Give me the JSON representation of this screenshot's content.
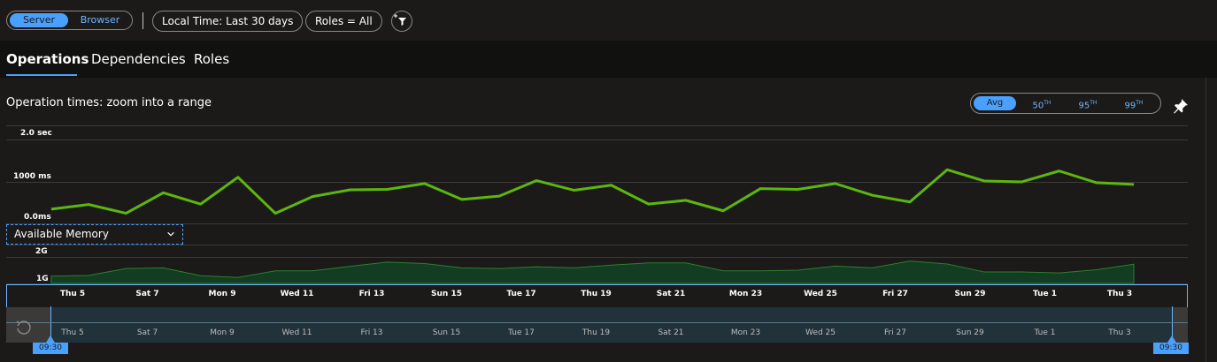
{
  "toolbar": {
    "source_toggle": {
      "server": "Server",
      "browser": "Browser"
    },
    "time_filter": "Local Time: Last 30 days",
    "roles_filter": "Roles = All",
    "add_filter_icon": "add-filter-icon"
  },
  "tabs": [
    "Operations",
    "Dependencies",
    "Roles"
  ],
  "panel": {
    "title": "Operation times: zoom into a range",
    "percentiles": {
      "avg": "Avg",
      "p50": "50",
      "p95": "95",
      "p99": "99",
      "suffix": "TH"
    },
    "pin_icon": "pin-icon",
    "metric_dropdown": "Available Memory"
  },
  "chart_data": [
    {
      "type": "line",
      "title": "",
      "ylabels": [
        "2.0 sec",
        "1000 ms",
        "0.0ms"
      ],
      "ylim": [
        0,
        2000
      ],
      "series": [
        {
          "values": [
            340,
            450,
            240,
            730,
            460,
            1100,
            240,
            640,
            800,
            810,
            950,
            570,
            650,
            1020,
            790,
            910,
            460,
            550,
            300,
            830,
            810,
            950,
            670,
            510,
            1280,
            1010,
            990,
            1250,
            970,
            930
          ]
        }
      ],
      "color": "#5db60d"
    },
    {
      "type": "area",
      "ylabels": [
        "2G",
        "1G"
      ],
      "ylim": [
        0.7,
        2.4
      ],
      "series": [
        {
          "values": [
            1.02,
            1.05,
            1.35,
            1.38,
            1.04,
            0.96,
            1.25,
            1.25,
            1.45,
            1.63,
            1.57,
            1.38,
            1.35,
            1.43,
            1.38,
            1.5,
            1.6,
            1.6,
            1.25,
            1.25,
            1.28,
            1.46,
            1.38,
            1.68,
            1.55,
            1.2,
            1.2,
            1.16,
            1.3,
            1.54
          ]
        }
      ],
      "color": "#2e7d32"
    }
  ],
  "xaxis": [
    "Thu 5",
    "Sat 7",
    "Mon 9",
    "Wed 11",
    "Fri 13",
    "Sun 15",
    "Tue 17",
    "Thu 19",
    "Sat 21",
    "Mon 23",
    "Wed 25",
    "Fri 27",
    "Sun 29",
    "Tue 1",
    "Thu 3"
  ],
  "brush": {
    "start_time": "09:30",
    "end_time": "09:30",
    "reset_icon": "reset-zoom-icon"
  }
}
